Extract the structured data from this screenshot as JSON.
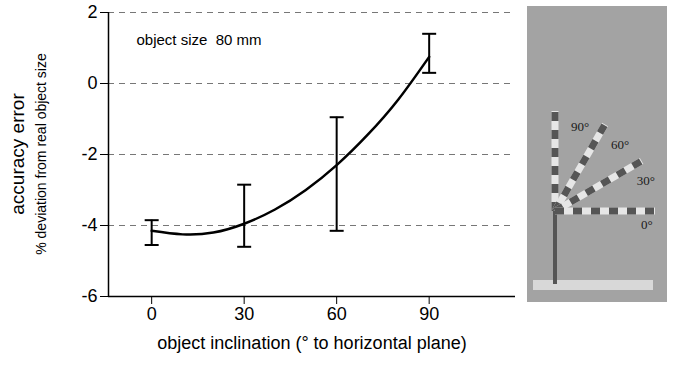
{
  "chart_data": {
    "type": "line",
    "annotations": [
      "object size  80 mm"
    ],
    "xlabel": "object inclination (° to horizontal plane)",
    "ylabel": "accuracy error",
    "ylabel_detail": "% deviation from real object size",
    "x": [
      0,
      10,
      20,
      30,
      40,
      50,
      60,
      70,
      80,
      90
    ],
    "values": [
      -4.15,
      -4.25,
      -4.2,
      -3.95,
      -3.55,
      -3.0,
      -2.3,
      -1.45,
      -0.45,
      0.75
    ],
    "color": "#000000",
    "error_bars": {
      "x": [
        0,
        30,
        60,
        90
      ],
      "low": [
        -4.55,
        -4.6,
        -4.15,
        0.3
      ],
      "high": [
        -3.85,
        -2.85,
        -0.95,
        1.4
      ]
    },
    "xlim": [
      -14,
      118
    ],
    "xticks": [
      0,
      30,
      60,
      90
    ],
    "ylim": [
      -6,
      2
    ],
    "yticks": [
      -6,
      -4,
      -2,
      0,
      2
    ],
    "grid": true,
    "inset": {
      "angles": [
        90,
        60,
        30,
        0
      ],
      "labels": [
        "90°",
        "60°",
        "30°",
        "0°"
      ]
    }
  }
}
